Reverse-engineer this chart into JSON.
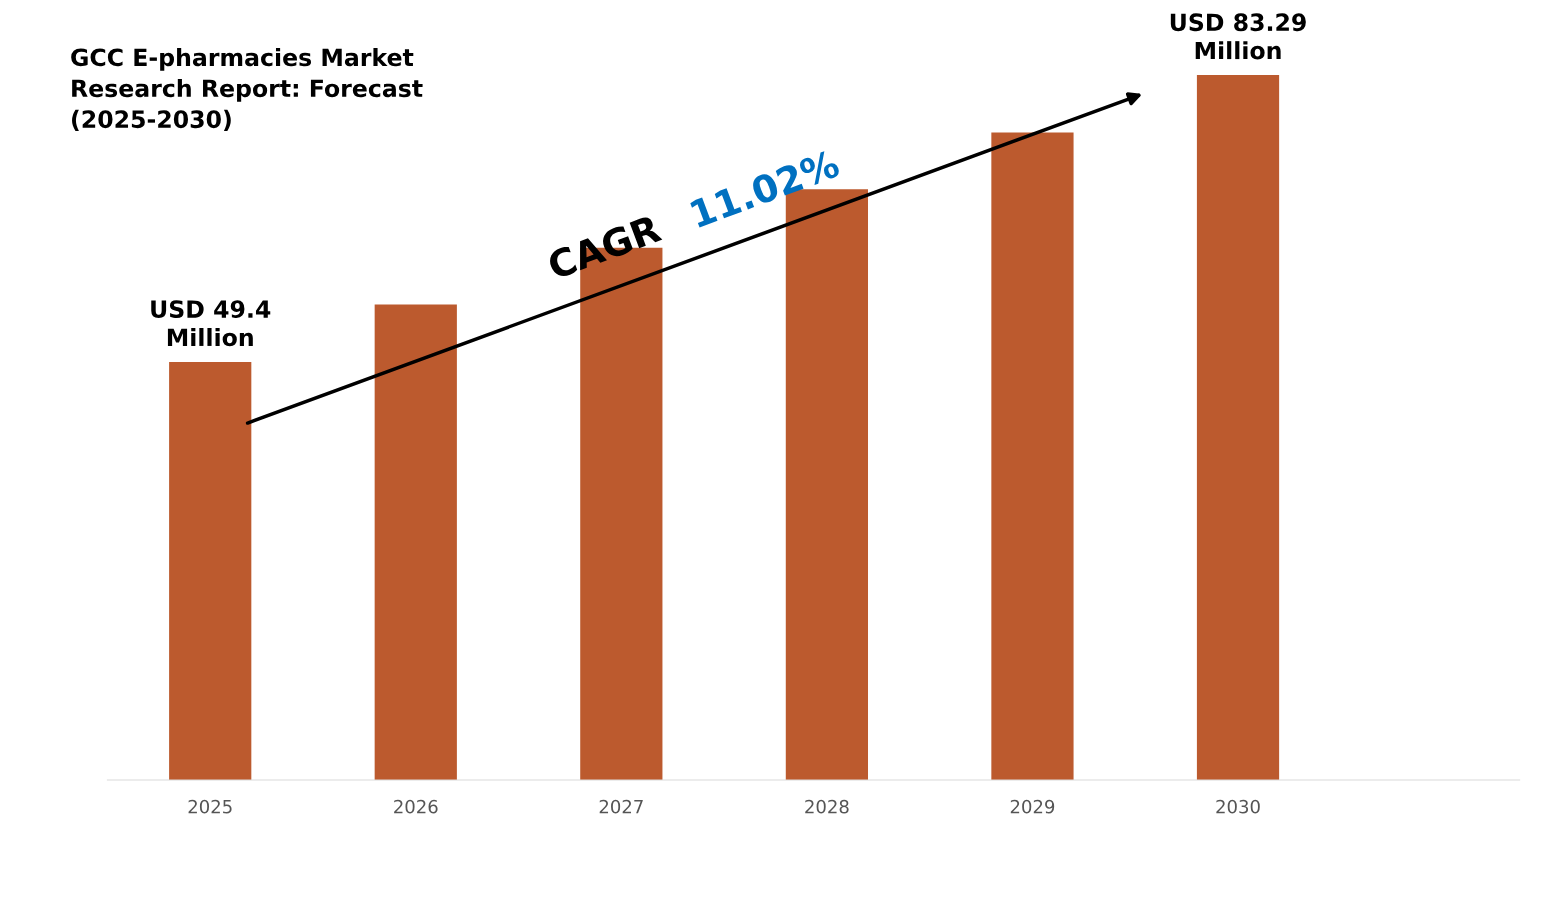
{
  "chart_data": {
    "type": "bar",
    "title": "GCC E-pharmacies Market\nResearch Report: Forecast\n(2025-2030)",
    "categories": [
      "2025",
      "2026",
      "2027",
      "2028",
      "2029",
      "2030"
    ],
    "values": [
      49.4,
      56.2,
      62.9,
      69.8,
      76.5,
      83.29
    ],
    "value_labels": [
      "USD 49.4\nMillion",
      null,
      null,
      null,
      null,
      "USD 83.29\nMillion"
    ],
    "color": "#bc5a2e",
    "tick_labels": "x",
    "grid": false,
    "legend": false,
    "annotations": [
      "CAGR",
      "11.02%"
    ]
  }
}
